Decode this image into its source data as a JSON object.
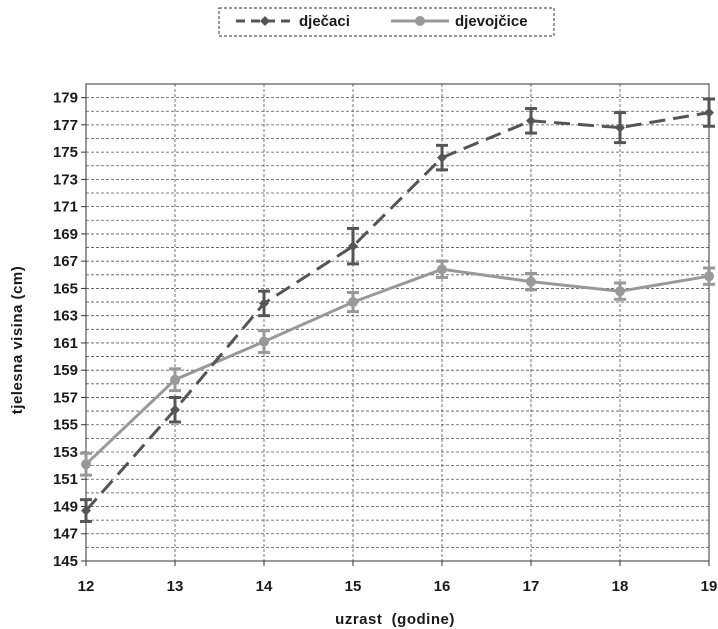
{
  "chart_data": {
    "type": "line",
    "title": "",
    "xlabel": "uzrast  (godine)",
    "ylabel": "tjelesna  visina  (cm)",
    "x": [
      12,
      13,
      14,
      15,
      16,
      17,
      18,
      19
    ],
    "x_ticks": [
      "12",
      "13",
      "14",
      "15",
      "16",
      "17",
      "18",
      "19"
    ],
    "y_ticks": [
      "145",
      "147",
      "149",
      "151",
      "153",
      "155",
      "157",
      "159",
      "161",
      "163",
      "165",
      "167",
      "169",
      "171",
      "173",
      "175",
      "177",
      "179"
    ],
    "xlim": [
      12,
      19
    ],
    "ylim": [
      145,
      180
    ],
    "grid": true,
    "legend_position": "top-center",
    "series": [
      {
        "name": "dječaci",
        "style": "dashed",
        "marker": "diamond",
        "color": "#555555",
        "values": [
          148.7,
          156.1,
          163.9,
          168.1,
          174.6,
          177.3,
          176.8,
          177.9
        ],
        "errors": [
          0.8,
          0.9,
          0.9,
          1.3,
          0.9,
          0.9,
          1.1,
          1.0
        ]
      },
      {
        "name": "djevojčice",
        "style": "solid",
        "marker": "circle",
        "color": "#999999",
        "values": [
          152.1,
          158.3,
          161.1,
          164.0,
          166.4,
          165.5,
          164.8,
          165.9
        ],
        "errors": [
          0.8,
          0.8,
          0.8,
          0.7,
          0.6,
          0.6,
          0.6,
          0.6
        ]
      }
    ]
  }
}
